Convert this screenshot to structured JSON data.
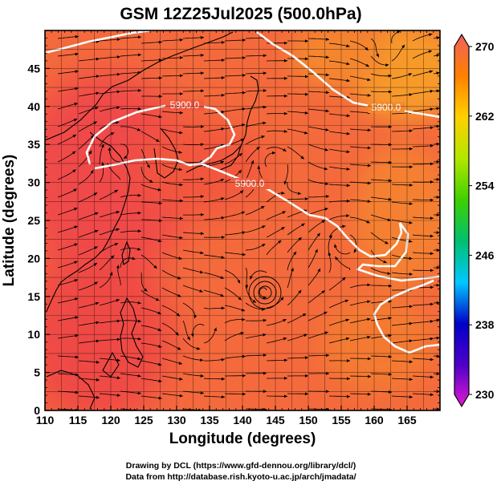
{
  "title": "GSM 12Z25Jul2025 (500.0hPa)",
  "x_axis": {
    "label": "Longitude (degrees)",
    "range": [
      110,
      170
    ],
    "ticks": [
      "110",
      "115",
      "120",
      "125",
      "130",
      "135",
      "140",
      "145",
      "150",
      "155",
      "160",
      "165"
    ]
  },
  "y_axis": {
    "label": "Latitude  (degrees)",
    "range": [
      0,
      50
    ],
    "ticks": [
      "0",
      "5",
      "10",
      "15",
      "20",
      "25",
      "30",
      "35",
      "40",
      "45"
    ]
  },
  "colorbar": {
    "ticks": [
      "230",
      "238",
      "246",
      "254",
      "262",
      "270"
    ],
    "range": [
      230,
      270
    ],
    "stops": [
      "#e01ad0",
      "#5000c8",
      "#0000c8",
      "#00c8ff",
      "#00c070",
      "#40d000",
      "#b4e600",
      "#ffd000",
      "#ff8000",
      "#f06060"
    ]
  },
  "contours": [
    {
      "label": "5900.0"
    },
    {
      "label": "5900.0"
    },
    {
      "label": "5900.0"
    }
  ],
  "colors": {
    "background_field": "#f46a3c",
    "warm_field": "#f04848",
    "contour": "#ffffff",
    "streamline": "#000000"
  },
  "credits": {
    "line1": "Drawing by DCL (https://www.gfd-dennou.org/library/dcl/)",
    "line2": "Data from http://database.rish.kyoto-u.ac.jp/arch/jmadata/"
  }
}
